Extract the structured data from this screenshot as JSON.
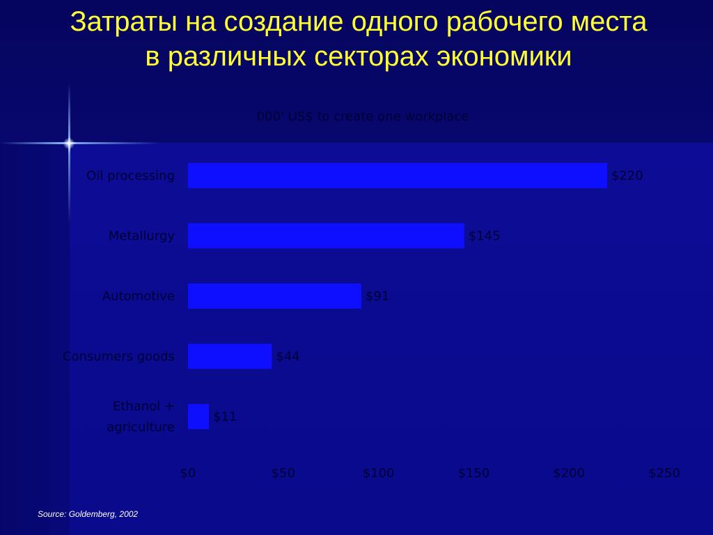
{
  "slide": {
    "title_line1": "Затраты на создание одного рабочего места",
    "title_line2": "в различных секторах экономики",
    "source": "Source: Goldemberg, 2002"
  },
  "colors": {
    "title": "#ffff33",
    "bar": "#0f0fff",
    "chart_text": "#000033",
    "background": "#0a0a8a"
  },
  "chart_data": {
    "type": "bar",
    "orientation": "horizontal",
    "title": "000' US$ to create one workplace",
    "categories": [
      "Oil processing",
      "Metallurgy",
      "Automotive",
      "Consumers goods",
      "Ethanol + agriculture"
    ],
    "values": [
      220,
      145,
      91,
      44,
      11
    ],
    "data_labels": [
      "$220",
      "$145",
      "$91",
      "$44",
      "$11"
    ],
    "xlim": [
      0,
      250
    ],
    "x_ticks": [
      0,
      50,
      100,
      150,
      200,
      250
    ],
    "x_tick_labels": [
      "$0",
      "$50",
      "$100",
      "$150",
      "$200",
      "$250"
    ],
    "grid": false,
    "legend": "none"
  }
}
